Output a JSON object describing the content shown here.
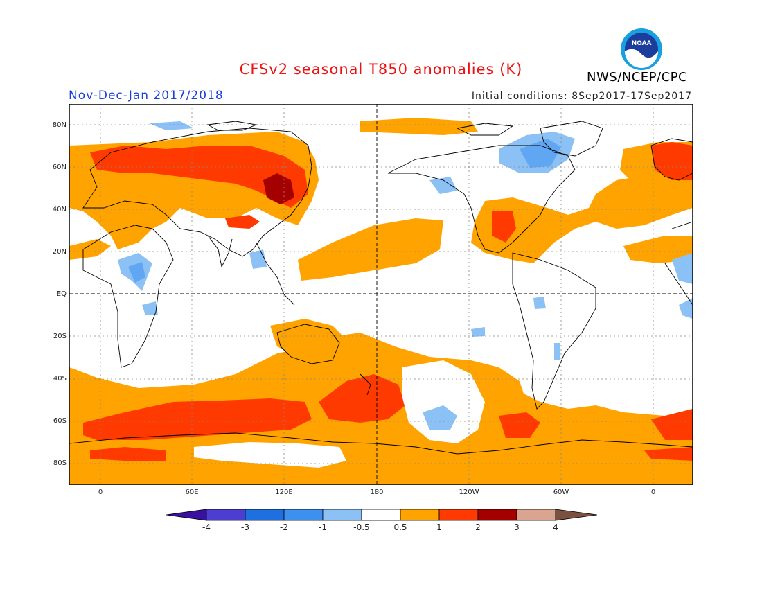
{
  "title": "CFSv2 seasonal T850 anomalies (K)",
  "period": "Nov-Dec-Jan 2017/2018",
  "initial_conditions": "Initial conditions: 8Sep2017-17Sep2017",
  "organization": "NWS/NCEP/CPC",
  "logo_text": "NOAA",
  "lat_labels": [
    "80N",
    "60N",
    "40N",
    "20N",
    "EQ",
    "20S",
    "40S",
    "60S",
    "80S"
  ],
  "lon_labels": [
    "0",
    "60E",
    "120E",
    "180",
    "120W",
    "60W",
    "0"
  ],
  "colorbar": {
    "labels": [
      "-4",
      "-3",
      "-2",
      "-1",
      "-0.5",
      "0.5",
      "1",
      "2",
      "3",
      "4"
    ],
    "colors": [
      "#3a10a0",
      "#4b3ed0",
      "#1e6fe0",
      "#3d8ff0",
      "#8cc1f5",
      "#ffffff",
      "#ffa300",
      "#ff3a00",
      "#a50000",
      "#d9a590",
      "#7a5040"
    ]
  },
  "colors": {
    "warm_1": "#ffa300",
    "warm_2": "#ff3a00",
    "warm_3": "#a50000",
    "cool_1": "#8cc1f5",
    "cool_2": "#3d8ff0",
    "title": "#ee1111",
    "period": "#1a3fe0"
  }
}
